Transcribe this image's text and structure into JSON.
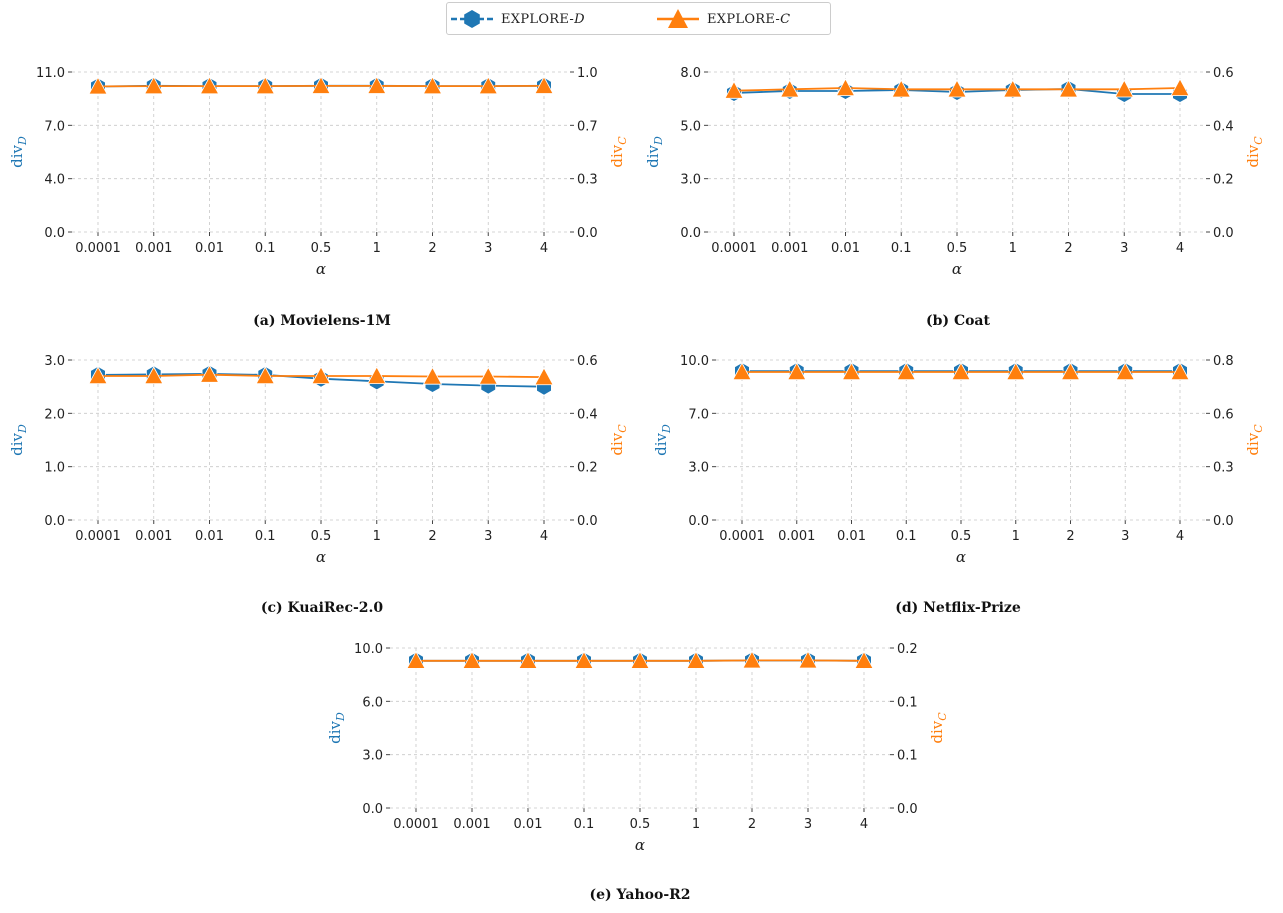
{
  "legend": {
    "position": "top-center",
    "items": [
      {
        "label": "EXPLORE-",
        "sub": "D",
        "color": "#1f77b4",
        "marker": "hexagon-marker",
        "style": "dashed"
      },
      {
        "label": "EXPLORE-",
        "sub": "C",
        "color": "#ff7f0e",
        "marker": "triangle-marker",
        "style": "solid"
      }
    ]
  },
  "chart_data": [
    {
      "type": "line",
      "caption": "(a) Movielens-1M",
      "x": [
        "0.0001",
        "0.001",
        "0.01",
        "0.1",
        "0.5",
        "1",
        "2",
        "3",
        "4"
      ],
      "xlabel": "α",
      "ylabel_left": "div_D",
      "ylabel_right": "div_C",
      "ylim_left": [
        0,
        11
      ],
      "yticks_left": [
        "0.0",
        "4.0",
        "7.0",
        "11.0"
      ],
      "ylim_right": [
        0,
        1
      ],
      "yticks_right": [
        "0.0",
        "0.3",
        "0.7",
        "1.0"
      ],
      "grid": true,
      "series": [
        {
          "name": "EXPLORE-D",
          "axis": "left",
          "values": [
            10.0,
            10.05,
            10.03,
            10.03,
            10.05,
            10.05,
            10.03,
            10.03,
            10.05
          ]
        },
        {
          "name": "EXPLORE-C",
          "axis": "right",
          "values": [
            0.91,
            0.912,
            0.912,
            0.912,
            0.913,
            0.913,
            0.912,
            0.912,
            0.913
          ]
        }
      ]
    },
    {
      "type": "line",
      "caption": "(b) Coat",
      "x": [
        "0.0001",
        "0.001",
        "0.01",
        "0.1",
        "0.5",
        "1",
        "2",
        "3",
        "4"
      ],
      "xlabel": "α",
      "ylabel_left": "div_D",
      "ylabel_right": "div_C",
      "ylim_left": [
        0,
        8
      ],
      "yticks_left": [
        "0.0",
        "3.0",
        "5.0",
        "8.0"
      ],
      "ylim_right": [
        0,
        0.6
      ],
      "yticks_right": [
        "0.0",
        "0.2",
        "0.4",
        "0.6"
      ],
      "grid": true,
      "series": [
        {
          "name": "EXPLORE-D",
          "axis": "left",
          "values": [
            6.95,
            7.05,
            7.05,
            7.1,
            7.0,
            7.1,
            7.15,
            6.9,
            6.9
          ]
        },
        {
          "name": "EXPLORE-C",
          "axis": "right",
          "values": [
            0.53,
            0.535,
            0.54,
            0.535,
            0.535,
            0.535,
            0.535,
            0.535,
            0.54
          ]
        }
      ]
    },
    {
      "type": "line",
      "caption": "(c) KuaiRec-2.0",
      "x": [
        "0.0001",
        "0.001",
        "0.01",
        "0.1",
        "0.5",
        "1",
        "2",
        "3",
        "4"
      ],
      "xlabel": "α",
      "ylabel_left": "div_D",
      "ylabel_right": "div_C",
      "ylim_left": [
        0,
        3
      ],
      "yticks_left": [
        "0.0",
        "1.0",
        "2.0",
        "3.0"
      ],
      "ylim_right": [
        0,
        0.6
      ],
      "yticks_right": [
        "0.0",
        "0.2",
        "0.4",
        "0.6"
      ],
      "grid": true,
      "series": [
        {
          "name": "EXPLORE-D",
          "axis": "left",
          "values": [
            2.72,
            2.73,
            2.74,
            2.72,
            2.65,
            2.6,
            2.55,
            2.52,
            2.5
          ]
        },
        {
          "name": "EXPLORE-C",
          "axis": "right",
          "values": [
            0.54,
            0.54,
            0.545,
            0.54,
            0.54,
            0.54,
            0.538,
            0.538,
            0.536
          ]
        }
      ]
    },
    {
      "type": "line",
      "caption": "(d) Netflix-Prize",
      "x": [
        "0.0001",
        "0.001",
        "0.01",
        "0.1",
        "0.5",
        "1",
        "2",
        "3",
        "4"
      ],
      "xlabel": "α",
      "ylabel_left": "div_D",
      "ylabel_right": "div_C",
      "ylim_left": [
        0,
        10
      ],
      "yticks_left": [
        "0.0",
        "3.0",
        "7.0",
        "10.0"
      ],
      "ylim_right": [
        0,
        0.8
      ],
      "yticks_right": [
        "0.0",
        "0.3",
        "0.6",
        "0.8"
      ],
      "grid": true,
      "series": [
        {
          "name": "EXPLORE-D",
          "axis": "left",
          "values": [
            9.3,
            9.3,
            9.3,
            9.3,
            9.3,
            9.3,
            9.3,
            9.3,
            9.3
          ]
        },
        {
          "name": "EXPLORE-C",
          "axis": "right",
          "values": [
            0.74,
            0.74,
            0.74,
            0.74,
            0.74,
            0.74,
            0.74,
            0.74,
            0.74
          ]
        }
      ]
    },
    {
      "type": "line",
      "caption": "(e) Yahoo-R2",
      "x": [
        "0.0001",
        "0.001",
        "0.01",
        "0.1",
        "0.5",
        "1",
        "2",
        "3",
        "4"
      ],
      "xlabel": "α",
      "ylabel_left": "div_D",
      "ylabel_right": "div_C",
      "ylim_left": [
        0,
        10
      ],
      "yticks_left": [
        "0.0",
        "3.0",
        "6.0",
        "10.0"
      ],
      "ylim_right": [
        0,
        0.2
      ],
      "yticks_right": [
        "0.0",
        "0.1",
        "0.1",
        "0.2"
      ],
      "grid": true,
      "series": [
        {
          "name": "EXPLORE-D",
          "axis": "left",
          "values": [
            9.2,
            9.2,
            9.2,
            9.2,
            9.2,
            9.2,
            9.22,
            9.22,
            9.2
          ]
        },
        {
          "name": "EXPLORE-C",
          "axis": "right",
          "values": [
            0.184,
            0.184,
            0.184,
            0.184,
            0.184,
            0.184,
            0.1845,
            0.1845,
            0.184
          ]
        }
      ]
    }
  ]
}
